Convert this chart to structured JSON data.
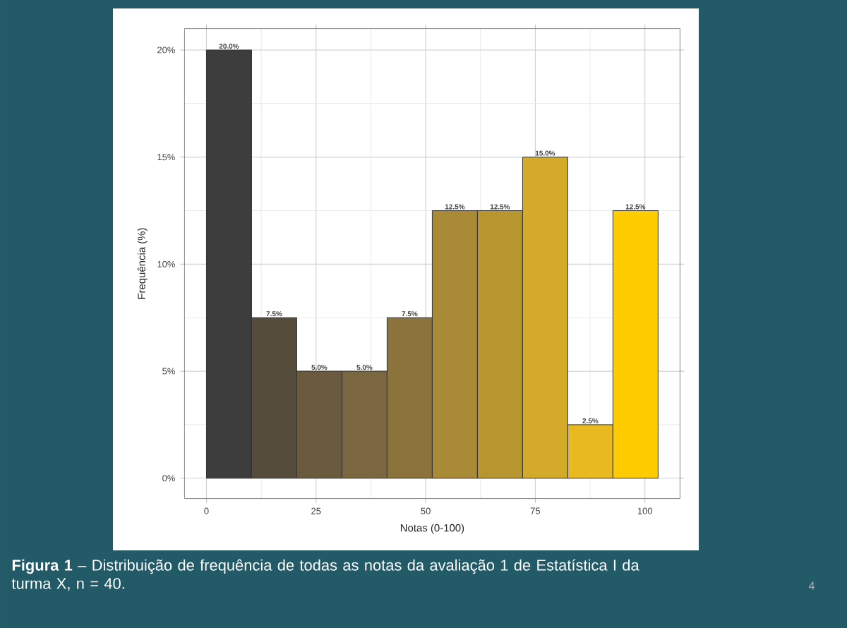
{
  "chart_data": {
    "type": "histogram",
    "xlabel": "Notas (0-100)",
    "ylabel": "Frequência (%)",
    "bins": [
      0,
      10.3,
      20.6,
      30.9,
      41.2,
      51.5,
      61.8,
      72.1,
      82.4,
      92.7,
      103
    ],
    "values": [
      20,
      7.5,
      5,
      5,
      7.5,
      12.5,
      12.5,
      15,
      2.5,
      12.5
    ],
    "value_labels": [
      "20.0%",
      "7.5%",
      "5.0%",
      "5.0%",
      "7.5%",
      "12.5%",
      "12.5%",
      "15.0%",
      "2.5%",
      "12.5%"
    ],
    "colors": [
      "#3d3d3d",
      "#564c3c",
      "#6a5a3e",
      "#7a673f",
      "#8c733c",
      "#a88a37",
      "#b8962f",
      "#d4aa2a",
      "#e8b920",
      "#ffcc00"
    ],
    "xlim": [
      -5,
      108
    ],
    "ylim": [
      -0.95,
      21
    ],
    "xticks": [
      0,
      25,
      50,
      75,
      100
    ],
    "yticks": [
      {
        "value": 0,
        "label": "0%"
      },
      {
        "value": 5,
        "label": "5%"
      },
      {
        "value": 10,
        "label": "10%"
      },
      {
        "value": 15,
        "label": "15%"
      },
      {
        "value": 20,
        "label": "20%"
      }
    ],
    "grid": true,
    "annotations": [
      "**Figura 1** – Distribuição de frequência de todas as notas da avaliação 1 de Estatística I da turma X, n = 40.",
      "4"
    ]
  }
}
